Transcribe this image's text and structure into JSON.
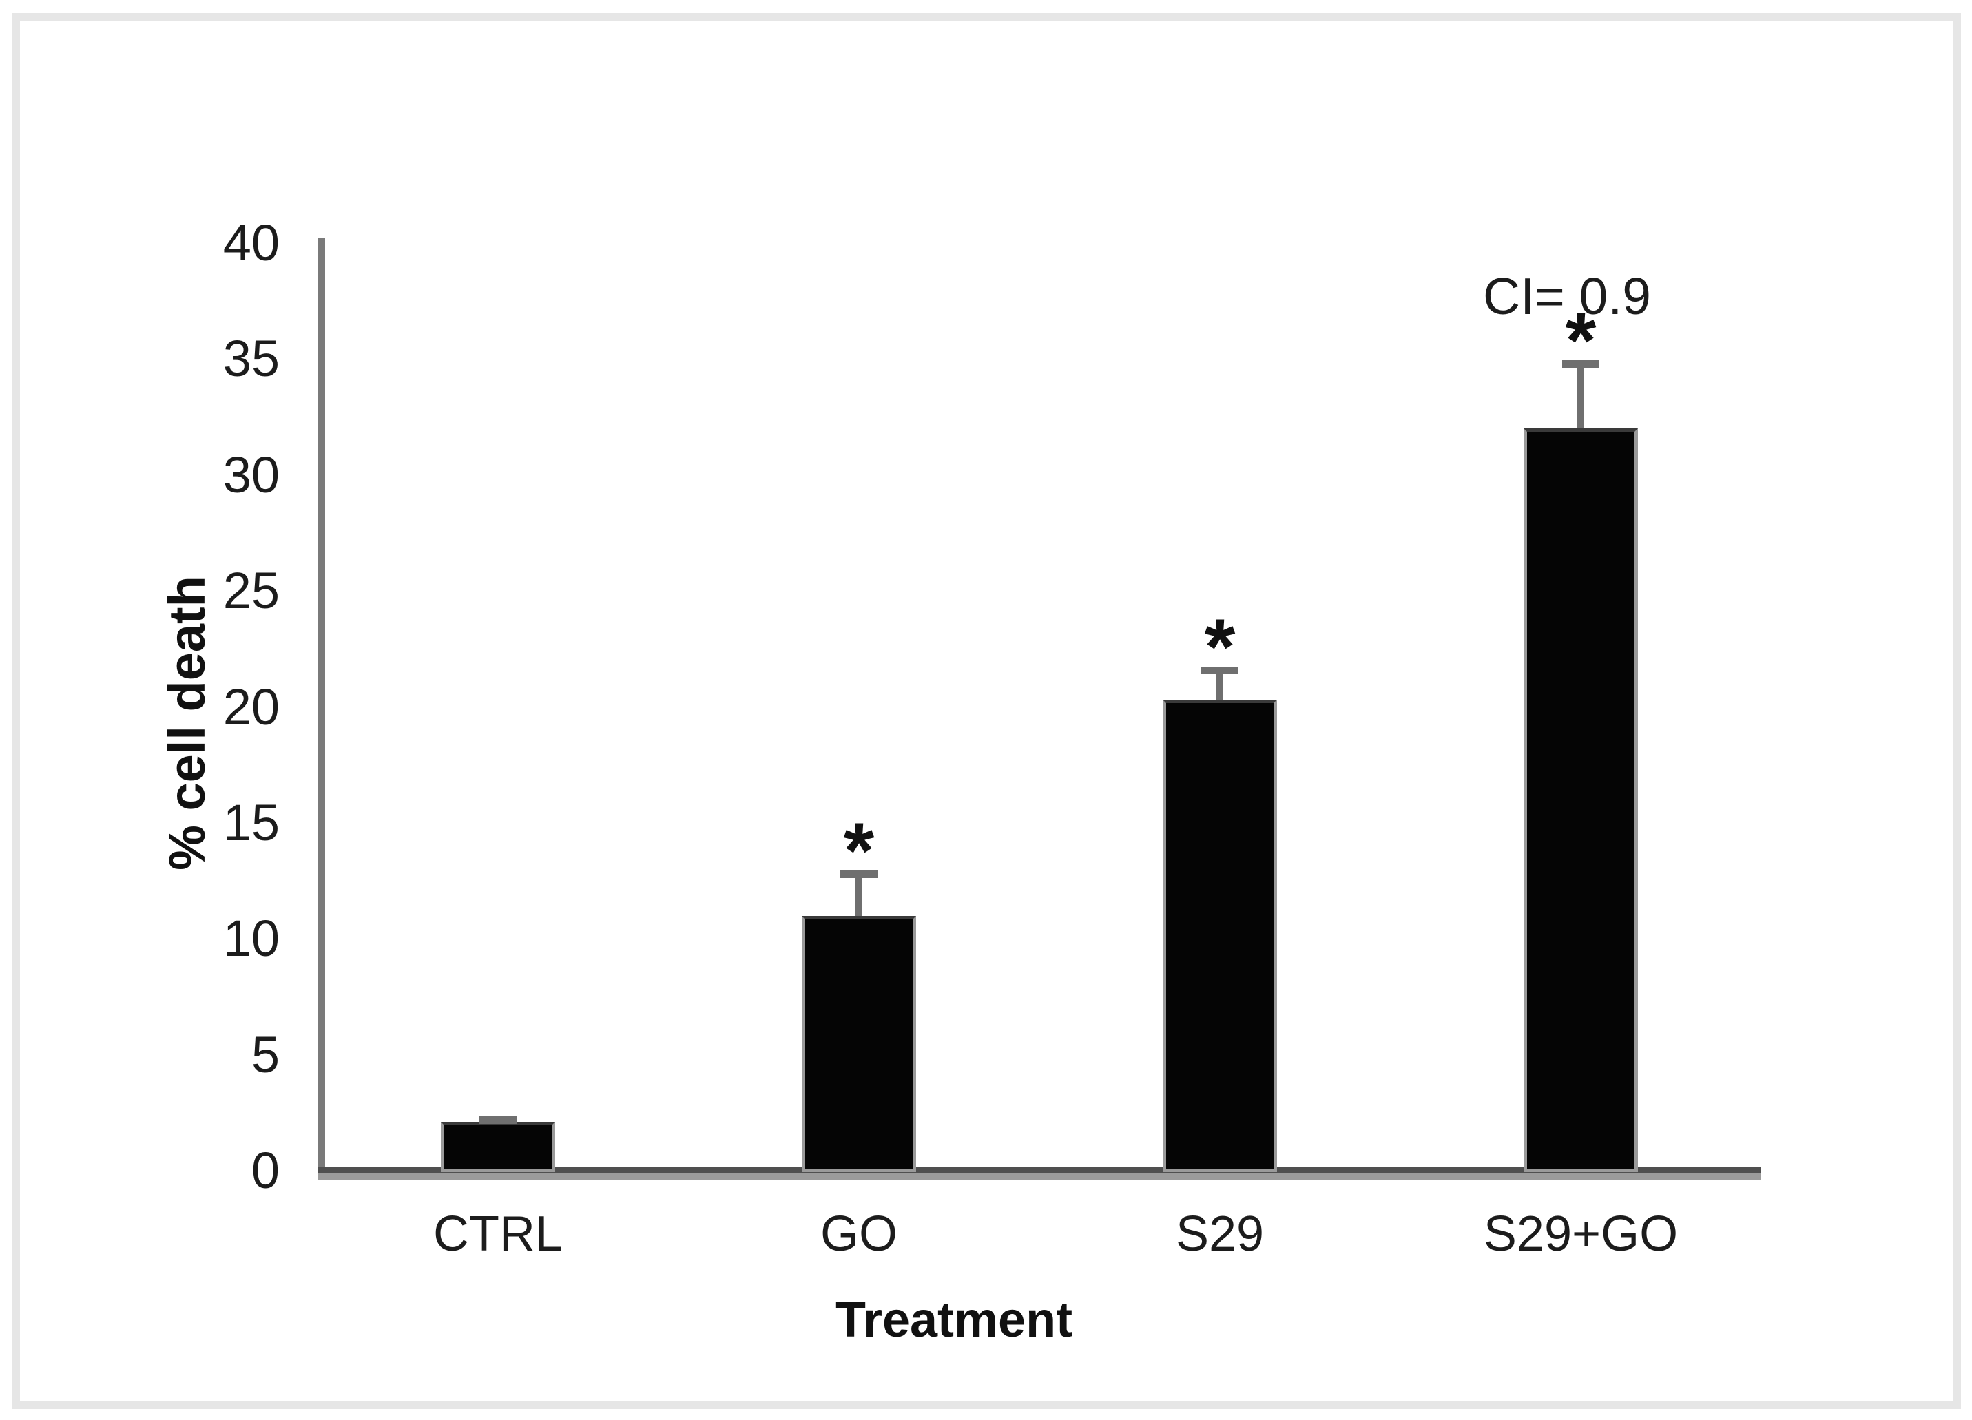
{
  "figure": {
    "background_color": "#ffffff",
    "frame_border_color": "#e6e6e6"
  },
  "chart_data": {
    "type": "bar",
    "title": "",
    "categories": [
      "CTRL",
      "GO",
      "S29",
      "S29+GO"
    ],
    "values": [
      2.1,
      11.0,
      20.3,
      32.0
    ],
    "errors_upper": [
      0.1,
      1.8,
      1.3,
      2.8
    ],
    "significance": [
      "",
      "*",
      "*",
      "*"
    ],
    "annotations": [
      {
        "text": "CI= 0.9",
        "category": "S29+GO"
      }
    ],
    "xlabel": "Treatment",
    "ylabel": "% cell death",
    "ylim": [
      0,
      40
    ],
    "ytick_step": 5,
    "ytick_labels": [
      "0",
      "5",
      "10",
      "15",
      "20",
      "25",
      "30",
      "35",
      "40"
    ],
    "grid": false,
    "legend": "none",
    "bar_color": "#050505",
    "bar_border_color": "#9a9a9a",
    "axis_color": "#7a7a7a",
    "error_bar_color": "#6f6f6f",
    "text_color": "#1c1c1c"
  }
}
